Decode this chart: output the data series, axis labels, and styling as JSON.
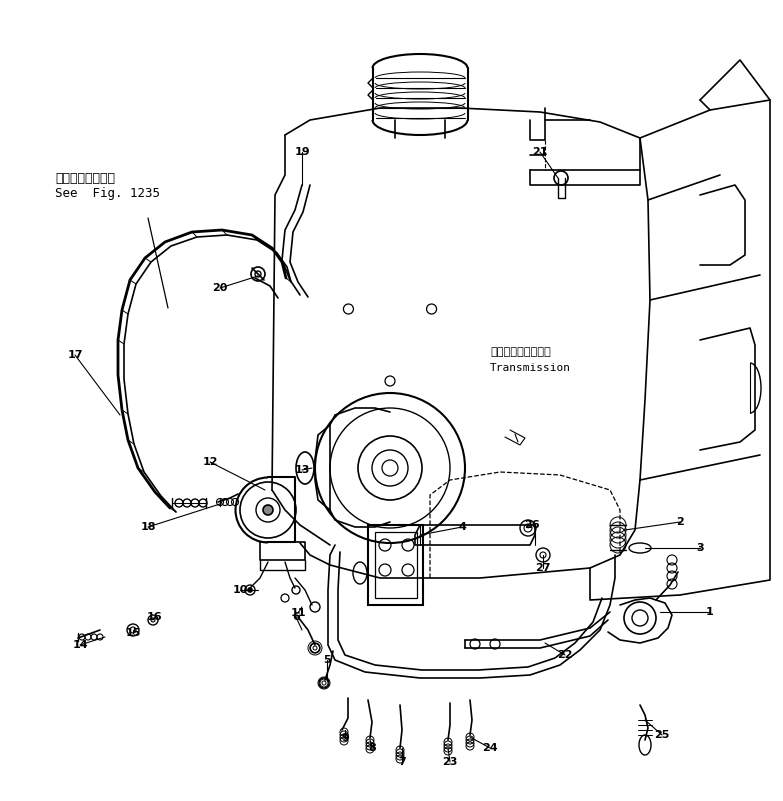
{
  "bg_color": "#ffffff",
  "line_color": "#000000",
  "fig_width": 7.83,
  "fig_height": 8.01,
  "dpi": 100,
  "text_ref_line1": "第１２３５図参照",
  "text_ref_line2": "See  Fig. 1235",
  "text_trans_jp": "トランスミッション",
  "text_trans_en": "Transmission",
  "label_fs": 8.0
}
